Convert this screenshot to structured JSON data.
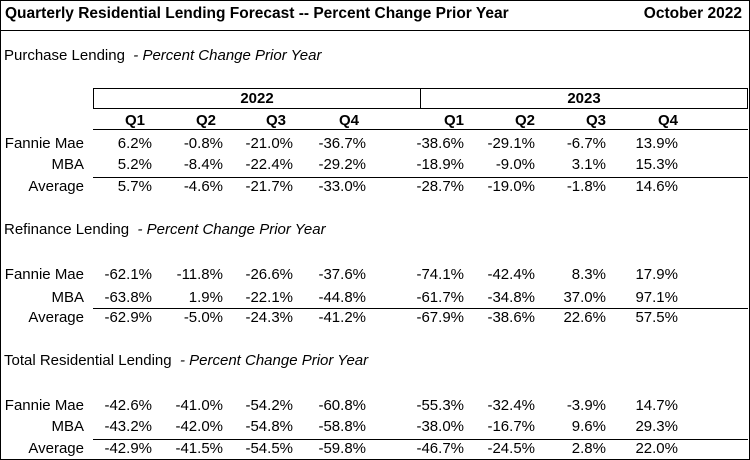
{
  "header": {
    "title": "Quarterly Residential Lending Forecast -- Percent Change Prior Year",
    "date": "October 2022"
  },
  "years": [
    "2022",
    "2023"
  ],
  "quarters": [
    "Q1",
    "Q2",
    "Q3",
    "Q4",
    "Q1",
    "Q2",
    "Q3",
    "Q4"
  ],
  "sections": [
    {
      "title": "Purchase Lending",
      "subtitle": "- Percent Change Prior Year",
      "rows": [
        {
          "label": "Fannie Mae",
          "values": [
            "6.2%",
            "-0.8%",
            "-21.0%",
            "-36.7%",
            "-38.6%",
            "-29.1%",
            "-6.7%",
            "13.9%"
          ]
        },
        {
          "label": "MBA",
          "values": [
            "5.2%",
            "-8.4%",
            "-22.4%",
            "-29.2%",
            "-18.9%",
            "-9.0%",
            "3.1%",
            "15.3%"
          ]
        },
        {
          "label": "Average",
          "values": [
            "5.7%",
            "-4.6%",
            "-21.7%",
            "-33.0%",
            "-28.7%",
            "-19.0%",
            "-1.8%",
            "14.6%"
          ]
        }
      ]
    },
    {
      "title": "Refinance Lending",
      "subtitle": "- Percent Change Prior Year",
      "rows": [
        {
          "label": "Fannie Mae",
          "values": [
            "-62.1%",
            "-11.8%",
            "-26.6%",
            "-37.6%",
            "-74.1%",
            "-42.4%",
            "8.3%",
            "17.9%"
          ]
        },
        {
          "label": "MBA",
          "values": [
            "-63.8%",
            "1.9%",
            "-22.1%",
            "-44.8%",
            "-61.7%",
            "-34.8%",
            "37.0%",
            "97.1%"
          ]
        },
        {
          "label": "Average",
          "values": [
            "-62.9%",
            "-5.0%",
            "-24.3%",
            "-41.2%",
            "-67.9%",
            "-38.6%",
            "22.6%",
            "57.5%"
          ]
        }
      ]
    },
    {
      "title": "Total Residential Lending",
      "subtitle": "- Percent Change Prior Year",
      "rows": [
        {
          "label": "Fannie Mae",
          "values": [
            "-42.6%",
            "-41.0%",
            "-54.2%",
            "-60.8%",
            "-55.3%",
            "-32.4%",
            "-3.9%",
            "14.7%"
          ]
        },
        {
          "label": "MBA",
          "values": [
            "-43.2%",
            "-42.0%",
            "-54.8%",
            "-58.8%",
            "-38.0%",
            "-16.7%",
            "9.6%",
            "29.3%"
          ]
        },
        {
          "label": "Average",
          "values": [
            "-42.9%",
            "-41.5%",
            "-54.5%",
            "-59.8%",
            "-46.7%",
            "-24.5%",
            "2.8%",
            "22.0%"
          ]
        }
      ]
    }
  ]
}
